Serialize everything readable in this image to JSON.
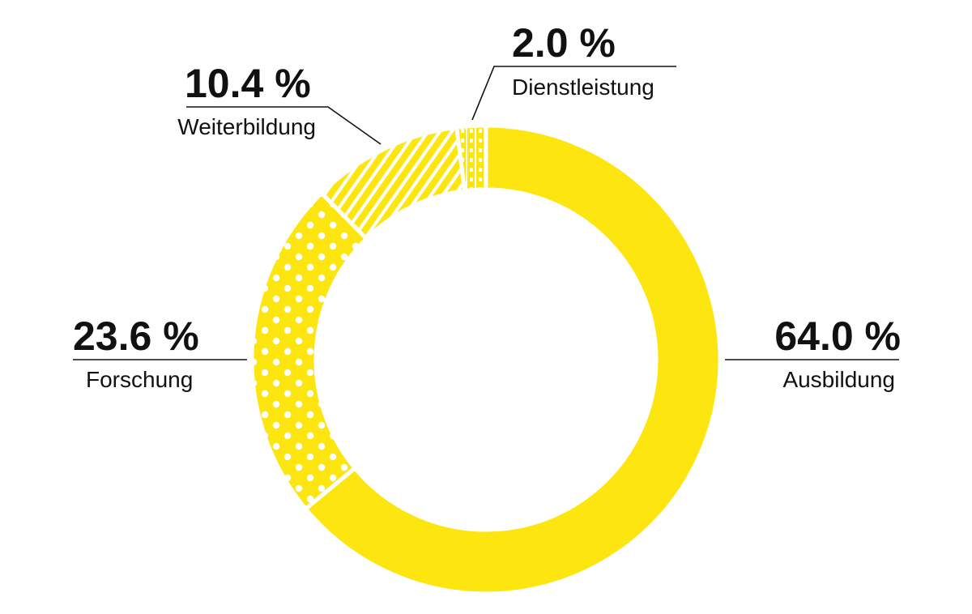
{
  "chart_data": {
    "type": "pie",
    "variant": "donut",
    "start": "top",
    "direction": "clockwise",
    "color": "#FDE50F",
    "slices": [
      {
        "label": "Ausbildung",
        "value": 64.0,
        "display": "64.0 %",
        "pattern": "solid"
      },
      {
        "label": "Forschung",
        "value": 23.6,
        "display": "23.6 %",
        "pattern": "dots"
      },
      {
        "label": "Weiterbildung",
        "value": 10.4,
        "display": "10.4 %",
        "pattern": "diagonal-stripes"
      },
      {
        "label": "Dienstleistung",
        "value": 2.0,
        "display": "2.0 %",
        "pattern": "vertical-dashes"
      }
    ]
  }
}
